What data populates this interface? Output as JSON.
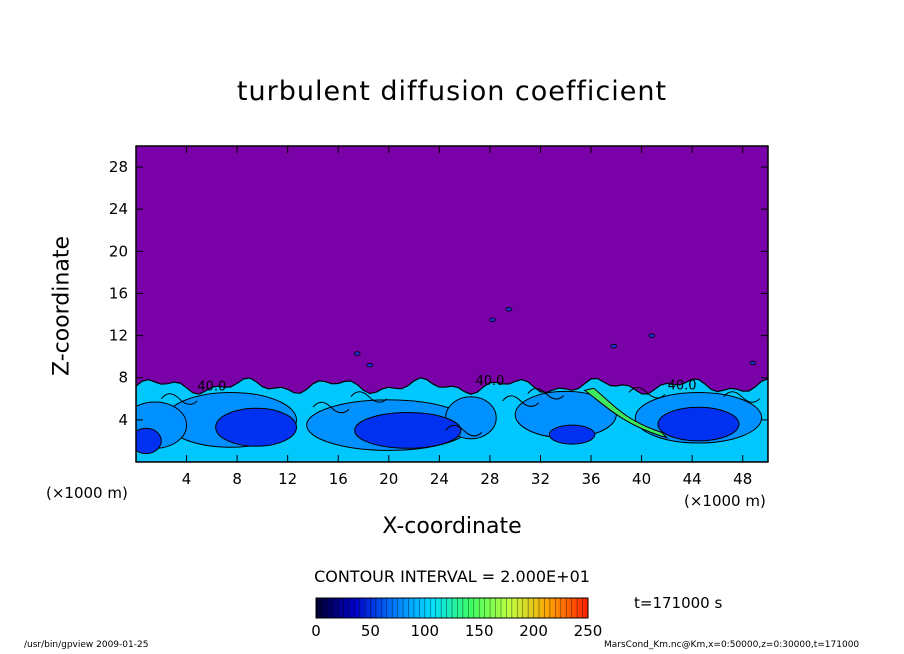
{
  "chart_data": {
    "type": "heatmap",
    "title": "turbulent diffusion coefficient",
    "xlabel": "X-coordinate",
    "ylabel": "Z-coordinate",
    "x_unit_left": "(×1000 m)",
    "x_unit_right": "(×1000 m)",
    "xlim": [
      0,
      50
    ],
    "ylim": [
      0,
      30
    ],
    "x_ticks": [
      4,
      8,
      12,
      16,
      20,
      24,
      28,
      32,
      36,
      40,
      44,
      48
    ],
    "y_ticks": [
      4,
      8,
      12,
      16,
      20,
      24,
      28
    ],
    "contour_labels": [
      {
        "text": "40.0",
        "x": 6.0,
        "y": 6.8
      },
      {
        "text": "40.0",
        "x": 28.0,
        "y": 7.3
      },
      {
        "text": "40.0",
        "x": 43.2,
        "y": 6.9
      }
    ],
    "contour_interval_text": "CONTOUR INTERVAL = 2.000E+01",
    "colorbar": {
      "min": 0,
      "max": 250,
      "ticks": [
        0,
        50,
        100,
        150,
        200,
        250
      ],
      "colors": [
        "#000030",
        "#0000c8",
        "#0078ff",
        "#00e0ff",
        "#40ff60",
        "#c0ff40",
        "#ffa000",
        "#ff2000"
      ]
    },
    "colors": {
      "background_purple": "#7a00a8",
      "region_light": "#00c8ff",
      "region_mid": "#0090ff",
      "region_dark": "#0030f0",
      "region_green": "#40e860"
    },
    "time_text": "t=171000 s"
  },
  "footer": {
    "left": "/usr/bin/gpview  2009-01-25",
    "right": "MarsCond_Km.nc@Km,x=0:50000,z=0:30000,t=171000"
  }
}
